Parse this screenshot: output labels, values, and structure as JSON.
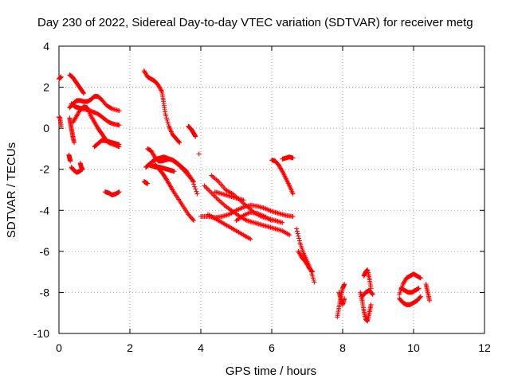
{
  "chart_data": {
    "type": "scatter",
    "title": "Day 230 of 2022, Sidereal Day-to-day VTEC variation (SDTVAR) for receiver metg",
    "xlabel": "GPS time / hours",
    "ylabel": "SDTVAR / TECUs",
    "xlim": [
      0,
      12
    ],
    "ylim": [
      -10,
      4
    ],
    "xticks": [
      0,
      2,
      4,
      6,
      8,
      10,
      12
    ],
    "yticks": [
      -10,
      -8,
      -6,
      -4,
      -2,
      0,
      2,
      4
    ],
    "xtick_labels": [
      "0",
      "2",
      "4",
      "6",
      "8",
      "10",
      "12"
    ],
    "ytick_labels": [
      "-10",
      "-8",
      "-6",
      "-4",
      "-2",
      "0",
      "2",
      "4"
    ],
    "grid": true,
    "marker": "plus",
    "color": "#ff0000",
    "segments": [
      {
        "x": [
          0.0,
          0.03,
          0.06
        ],
        "y": [
          2.4,
          2.45,
          2.5
        ]
      },
      {
        "x": [
          0.0,
          0.03,
          0.06
        ],
        "y": [
          0.55,
          0.5,
          0.1
        ]
      },
      {
        "x": [
          0.3,
          0.4,
          0.5,
          0.6,
          0.7,
          0.8,
          0.9,
          1.0,
          1.1,
          1.2,
          1.35,
          1.5,
          1.7
        ],
        "y": [
          1.0,
          1.2,
          1.35,
          1.35,
          1.3,
          1.3,
          1.4,
          1.55,
          1.55,
          1.4,
          1.1,
          0.95,
          0.85
        ]
      },
      {
        "x": [
          0.35,
          0.45,
          0.55,
          0.65,
          0.8,
          0.95,
          1.1,
          1.25,
          1.4,
          1.55,
          1.7
        ],
        "y": [
          1.2,
          1.05,
          1.0,
          0.95,
          0.9,
          0.8,
          0.7,
          0.5,
          0.3,
          0.2,
          0.15
        ]
      },
      {
        "x": [
          0.4,
          0.5,
          0.6,
          0.7,
          0.8,
          0.9,
          1.0,
          1.1,
          1.2,
          1.3,
          1.4,
          1.55,
          1.7
        ],
        "y": [
          0.3,
          0.6,
          0.9,
          1.05,
          1.0,
          0.6,
          0.3,
          0.0,
          -0.25,
          -0.5,
          -0.7,
          -0.8,
          -0.9
        ]
      },
      {
        "x": [
          0.3,
          0.33,
          0.36,
          0.39,
          0.43
        ],
        "y": [
          0.5,
          0.2,
          -0.1,
          -0.4,
          -0.7
        ]
      },
      {
        "x": [
          0.3,
          0.38,
          0.46,
          0.54,
          0.62,
          0.7
        ],
        "y": [
          2.6,
          2.5,
          2.3,
          2.1,
          1.9,
          1.7
        ]
      },
      {
        "x": [
          0.28,
          0.3,
          0.32
        ],
        "y": [
          -1.3,
          -1.45,
          -1.6
        ]
      },
      {
        "x": [
          0.35,
          0.42,
          0.5,
          0.58,
          0.65
        ],
        "y": [
          -1.9,
          -2.05,
          -2.15,
          -2.1,
          -2.0
        ]
      },
      {
        "x": [
          0.6,
          0.63,
          0.66
        ],
        "y": [
          -1.7,
          -1.9,
          -2.0
        ]
      },
      {
        "x": [
          1.0,
          1.1,
          1.2,
          1.3,
          1.4,
          1.5,
          1.6,
          1.7
        ],
        "y": [
          -0.9,
          -0.75,
          -0.6,
          -0.6,
          -0.65,
          -0.7,
          -0.75,
          -0.8
        ]
      },
      {
        "x": [
          1.3,
          1.4,
          1.5,
          1.6,
          1.7
        ],
        "y": [
          -3.1,
          -3.15,
          -3.25,
          -3.2,
          -3.1
        ]
      },
      {
        "x": [
          2.4,
          2.5,
          2.6,
          2.7,
          2.8,
          2.9,
          2.95,
          3.0,
          3.1,
          3.2,
          3.3,
          3.4
        ],
        "y": [
          2.8,
          2.5,
          2.4,
          2.3,
          2.1,
          1.8,
          1.3,
          0.7,
          0.1,
          -0.3,
          -0.5,
          -0.7
        ]
      },
      {
        "x": [
          2.4,
          2.45,
          2.5
        ],
        "y": [
          -2.6,
          -2.65,
          -2.7
        ]
      },
      {
        "x": [
          2.45,
          2.55,
          2.65,
          2.75,
          2.85,
          2.95,
          3.05,
          3.2,
          3.35,
          3.5,
          3.65,
          3.8
        ],
        "y": [
          -1.9,
          -1.75,
          -1.6,
          -1.5,
          -1.45,
          -1.4,
          -1.45,
          -1.55,
          -1.75,
          -2.0,
          -2.3,
          -2.6
        ]
      },
      {
        "x": [
          2.5,
          2.6,
          2.7,
          2.8,
          2.9,
          3.0,
          3.1,
          3.2,
          3.3,
          3.4,
          3.5,
          3.6,
          3.75,
          3.9
        ],
        "y": [
          -1.0,
          -1.1,
          -1.4,
          -1.6,
          -1.6,
          -1.55,
          -1.5,
          -1.55,
          -1.65,
          -1.8,
          -1.95,
          -2.1,
          -2.5,
          -3.2
        ]
      },
      {
        "x": [
          2.7,
          2.8,
          2.9,
          3.0,
          3.1,
          3.2,
          3.35,
          3.5,
          3.65,
          3.8
        ],
        "y": [
          -1.75,
          -1.95,
          -2.15,
          -2.4,
          -2.7,
          -3.0,
          -3.4,
          -3.8,
          -4.2,
          -4.5
        ]
      },
      {
        "x": [
          2.55,
          2.65,
          2.75,
          2.85,
          2.95,
          3.05,
          3.15,
          3.25
        ],
        "y": [
          -1.8,
          -1.85,
          -1.9,
          -1.9,
          -1.95,
          -2.0,
          -2.05,
          -2.1
        ]
      },
      {
        "x": [
          3.65,
          3.7,
          3.75,
          3.8,
          3.85
        ],
        "y": [
          0.1,
          0.0,
          -0.1,
          -0.25,
          -0.4
        ]
      },
      {
        "x": [
          3.95
        ],
        "y": [
          -1.25
        ]
      },
      {
        "x": [
          4.0,
          4.2,
          4.4,
          4.6,
          4.8,
          5.0,
          5.2,
          5.4,
          5.6,
          5.8,
          6.0,
          6.2,
          6.4,
          6.6
        ],
        "y": [
          -4.3,
          -4.3,
          -4.35,
          -4.3,
          -4.2,
          -4.0,
          -3.85,
          -3.75,
          -3.8,
          -3.9,
          -4.05,
          -4.15,
          -4.25,
          -4.3
        ]
      },
      {
        "x": [
          4.1,
          4.3,
          4.5,
          4.7,
          4.9,
          5.1,
          5.3,
          5.5,
          5.7,
          5.9,
          6.1,
          6.3,
          6.5
        ],
        "y": [
          -2.8,
          -3.15,
          -3.5,
          -3.8,
          -4.05,
          -4.3,
          -4.5,
          -4.6,
          -4.7,
          -4.8,
          -4.9,
          -5.0,
          -5.2
        ]
      },
      {
        "x": [
          4.2,
          4.4,
          4.6,
          4.8,
          5.0,
          5.2,
          5.4
        ],
        "y": [
          -4.2,
          -4.4,
          -4.6,
          -4.8,
          -5.0,
          -5.2,
          -5.4
        ]
      },
      {
        "x": [
          4.3,
          4.5,
          4.7,
          4.9,
          5.1,
          5.3,
          5.5,
          5.7,
          5.9,
          6.1,
          6.3
        ],
        "y": [
          -2.3,
          -2.6,
          -3.0,
          -3.2,
          -3.5,
          -3.8,
          -4.1,
          -4.3,
          -4.4,
          -4.5,
          -4.6
        ]
      },
      {
        "x": [
          4.4,
          4.6,
          4.8,
          5.0,
          5.2
        ],
        "y": [
          -3.1,
          -3.2,
          -3.3,
          -3.4,
          -3.5
        ]
      },
      {
        "x": [
          5.0,
          5.2,
          5.4,
          5.6,
          5.8,
          6.0
        ],
        "y": [
          -4.5,
          -4.25,
          -4.1,
          -4.15,
          -4.3,
          -4.5
        ]
      },
      {
        "x": [
          6.0,
          6.1,
          6.2,
          6.3,
          6.4,
          6.5,
          6.6
        ],
        "y": [
          -1.55,
          -1.6,
          -1.8,
          -2.1,
          -2.45,
          -2.8,
          -3.2
        ]
      },
      {
        "x": [
          6.3,
          6.4,
          6.5,
          6.6
        ],
        "y": [
          -1.5,
          -1.45,
          -1.4,
          -1.45
        ]
      },
      {
        "x": [
          6.7,
          6.8,
          6.9,
          7.0,
          7.1,
          7.2
        ],
        "y": [
          -4.9,
          -5.6,
          -6.1,
          -6.5,
          -6.9,
          -7.5
        ]
      },
      {
        "x": [
          6.75,
          6.85,
          6.95,
          7.05,
          7.15
        ],
        "y": [
          -6.0,
          -6.3,
          -6.5,
          -6.8,
          -7.0
        ]
      },
      {
        "x": [
          7.85,
          7.9,
          7.95,
          8.0,
          8.05
        ],
        "y": [
          -9.2,
          -8.7,
          -8.2,
          -7.8,
          -7.6
        ]
      },
      {
        "x": [
          7.9,
          7.95,
          8.0,
          8.05
        ],
        "y": [
          -8.0,
          -8.3,
          -8.6,
          -8.3
        ]
      },
      {
        "x": [
          8.5,
          8.55,
          8.6,
          8.65,
          8.7,
          8.75,
          8.8
        ],
        "y": [
          -8.0,
          -8.4,
          -8.9,
          -9.3,
          -9.4,
          -9.0,
          -8.6
        ]
      },
      {
        "x": [
          8.6,
          8.65,
          8.7,
          8.75,
          8.8
        ],
        "y": [
          -7.2,
          -7.0,
          -6.9,
          -7.3,
          -7.8
        ]
      },
      {
        "x": [
          8.55,
          8.65,
          8.75,
          8.85
        ],
        "y": [
          -8.2,
          -8.0,
          -7.9,
          -8.1
        ]
      },
      {
        "x": [
          9.6,
          9.7,
          9.8,
          9.9,
          10.0,
          10.1,
          10.2
        ],
        "y": [
          -8.1,
          -7.6,
          -7.3,
          -7.2,
          -7.1,
          -7.2,
          -7.3
        ]
      },
      {
        "x": [
          9.6,
          9.7,
          9.8,
          9.9,
          10.0,
          10.1,
          10.2
        ],
        "y": [
          -8.3,
          -8.5,
          -8.6,
          -8.6,
          -8.5,
          -8.4,
          -8.2
        ]
      },
      {
        "x": [
          9.65,
          9.75,
          9.85,
          9.95,
          10.05,
          10.15
        ],
        "y": [
          -7.8,
          -7.9,
          -8.0,
          -8.0,
          -7.9,
          -7.8
        ]
      },
      {
        "x": [
          10.35,
          10.4,
          10.45
        ],
        "y": [
          -7.6,
          -8.0,
          -8.4
        ]
      }
    ]
  }
}
